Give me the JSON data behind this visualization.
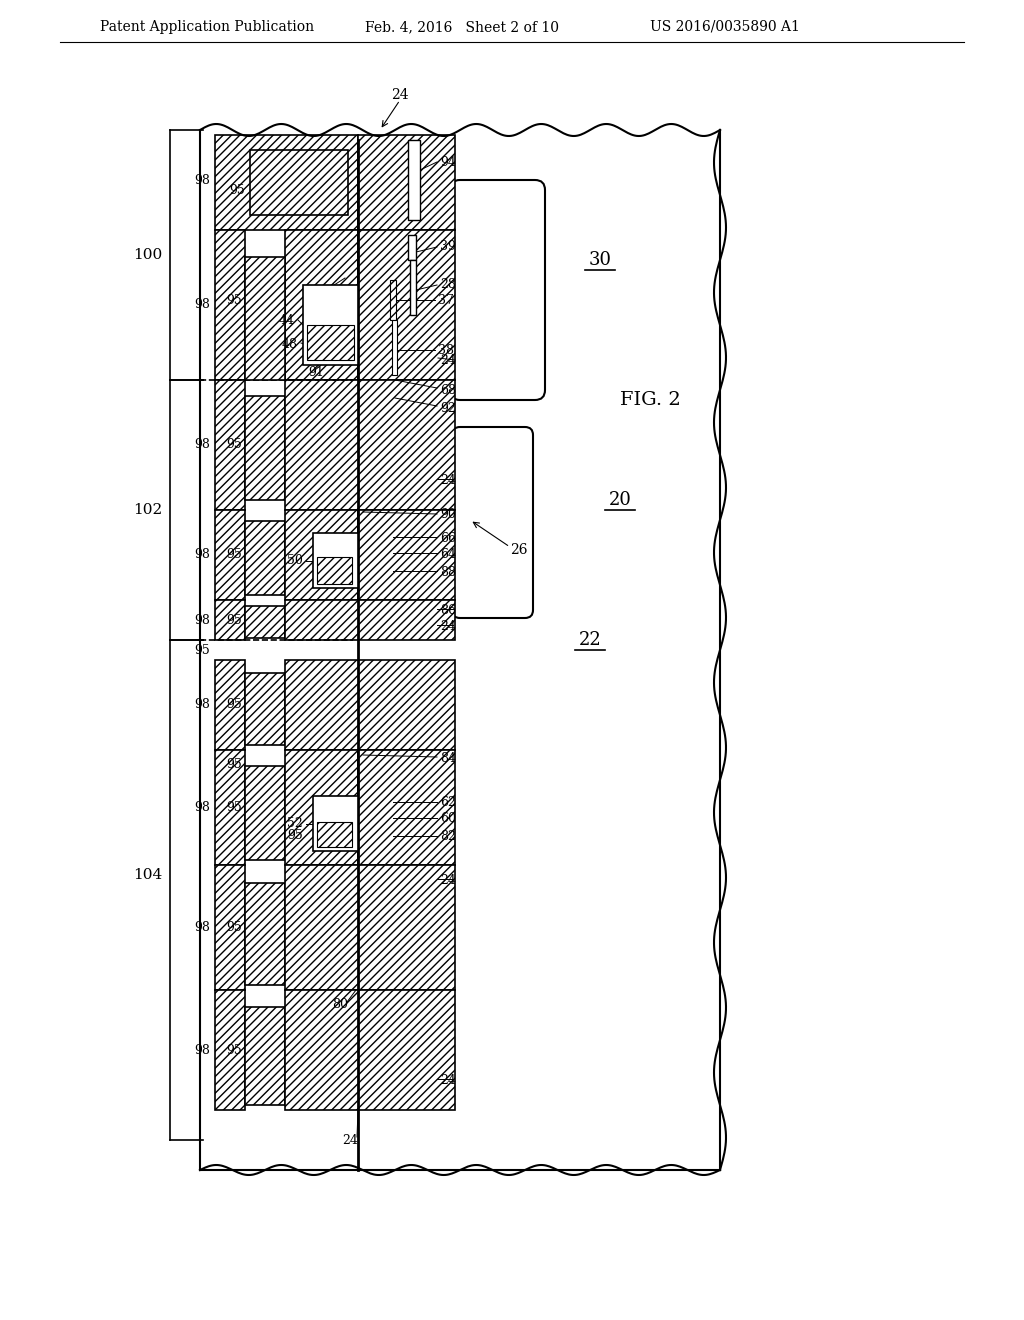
{
  "header_left": "Patent Application Publication",
  "header_center": "Feb. 4, 2016   Sheet 2 of 10",
  "header_right": "US 2016/0035890 A1",
  "fig_label": "FIG. 2",
  "bg_color": "#ffffff"
}
